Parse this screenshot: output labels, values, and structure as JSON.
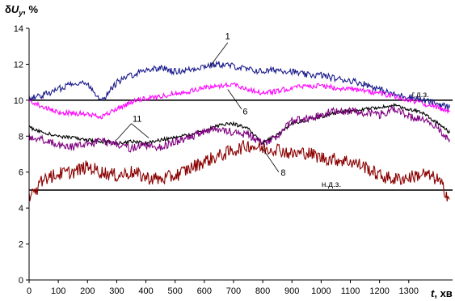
{
  "chart_data": {
    "type": "line",
    "ylabel": "δUy, %",
    "ylabel_prefix": "δ",
    "ylabel_var": "U",
    "ylabel_sub": "y",
    "ylabel_unit": ", %",
    "xlabel": "t, хв",
    "xlabel_var": "t",
    "xlabel_unit": ", хв",
    "xlim": [
      0,
      1450
    ],
    "ylim": [
      0,
      14
    ],
    "x_ticks": [
      "0",
      "100",
      "200",
      "300",
      "400",
      "500",
      "600",
      "700",
      "800",
      "900",
      "1000",
      "1100",
      "1200",
      "1300"
    ],
    "y_ticks": [
      "0",
      "2",
      "4",
      "6",
      "8",
      "10",
      "12",
      "14"
    ],
    "grid": false,
    "reference_lines": [
      {
        "label": "г.д.з.",
        "y": 10
      },
      {
        "label": "н.д.з.",
        "y": 5
      }
    ],
    "x": [
      0,
      50,
      100,
      150,
      200,
      250,
      300,
      350,
      400,
      450,
      500,
      550,
      600,
      650,
      700,
      750,
      800,
      850,
      900,
      950,
      1000,
      1050,
      1100,
      1150,
      1200,
      1250,
      1300,
      1350,
      1400,
      1440
    ],
    "series": [
      {
        "name": "1",
        "color": "#1a1a8c",
        "values": [
          10.1,
          10.3,
          10.6,
          11.0,
          10.9,
          10.0,
          11.0,
          11.4,
          11.7,
          11.8,
          11.6,
          11.7,
          11.9,
          12.0,
          11.9,
          11.7,
          11.6,
          11.7,
          11.6,
          11.4,
          11.4,
          11.2,
          11.1,
          10.9,
          10.6,
          10.3,
          10.2,
          10.0,
          9.8,
          9.6
        ]
      },
      {
        "name": "6",
        "color": "#ff00ff",
        "values": [
          10.0,
          9.6,
          9.3,
          9.3,
          9.2,
          9.1,
          9.5,
          9.9,
          10.1,
          10.2,
          10.4,
          10.5,
          10.7,
          10.8,
          10.9,
          10.6,
          10.4,
          10.5,
          10.7,
          10.8,
          10.8,
          10.7,
          10.6,
          10.5,
          10.4,
          10.2,
          10.0,
          9.8,
          9.6,
          9.4
        ]
      },
      {
        "name": "11",
        "color": "#000000",
        "values": [
          8.5,
          8.2,
          8.0,
          7.9,
          7.8,
          7.7,
          7.6,
          7.7,
          7.6,
          7.8,
          7.9,
          8.1,
          8.3,
          8.6,
          8.7,
          8.4,
          7.6,
          8.1,
          8.7,
          8.9,
          9.1,
          9.3,
          9.4,
          9.5,
          9.6,
          9.7,
          9.5,
          9.3,
          8.7,
          8.2
        ]
      },
      {
        "name": "purple",
        "color": "#800080",
        "values": [
          8.0,
          7.8,
          7.5,
          7.4,
          7.6,
          7.7,
          7.6,
          7.3,
          7.5,
          7.4,
          7.7,
          7.9,
          8.3,
          8.4,
          8.2,
          8.1,
          7.6,
          8.0,
          8.8,
          9.0,
          9.2,
          9.4,
          9.4,
          9.3,
          9.2,
          9.5,
          9.1,
          8.9,
          8.4,
          7.8
        ]
      },
      {
        "name": "8",
        "color": "#8b0000",
        "values": [
          4.5,
          5.6,
          5.9,
          6.0,
          6.3,
          6.0,
          5.8,
          6.0,
          5.7,
          5.6,
          5.8,
          6.2,
          6.6,
          6.9,
          7.2,
          7.5,
          7.3,
          7.3,
          7.0,
          7.1,
          6.8,
          6.7,
          6.6,
          6.3,
          5.8,
          5.6,
          5.7,
          5.9,
          5.6,
          4.5
        ]
      }
    ],
    "annotations": [
      {
        "text": "1",
        "x": 680,
        "y": 13.4
      },
      {
        "text": "6",
        "x": 740,
        "y": 9.2
      },
      {
        "text": "11",
        "x": 370,
        "y": 8.8
      },
      {
        "text": "8",
        "x": 870,
        "y": 5.8
      }
    ]
  }
}
